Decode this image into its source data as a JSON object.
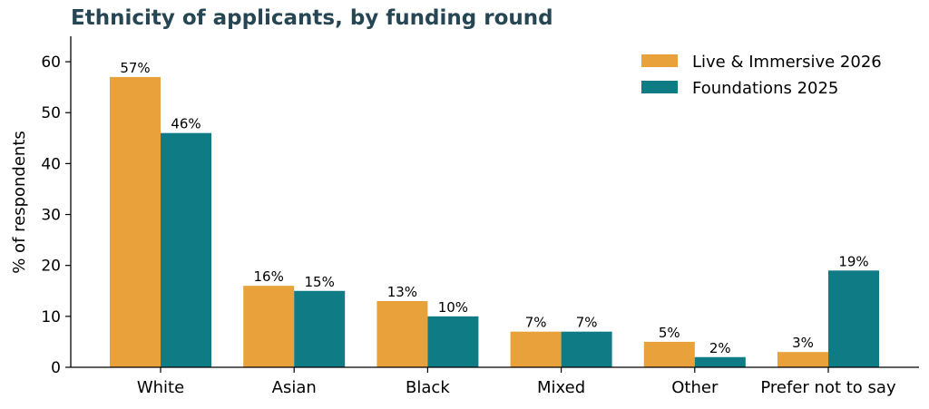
{
  "chart_data": {
    "type": "bar",
    "title": "Ethnicity of applicants, by funding round",
    "xlabel": "",
    "ylabel": "% of respondents",
    "ylim": [
      0,
      65
    ],
    "yticks": [
      0,
      10,
      20,
      30,
      40,
      50,
      60
    ],
    "grid": false,
    "legend_position": "top-right",
    "categories": [
      "White",
      "Asian",
      "Black",
      "Mixed",
      "Other",
      "Prefer not to say"
    ],
    "series": [
      {
        "name": "Live & Immersive 2026",
        "color": "#E9A23B",
        "values": [
          57,
          16,
          13,
          7,
          5,
          3
        ],
        "labels": [
          "57%",
          "16%",
          "13%",
          "7%",
          "5%",
          "3%"
        ]
      },
      {
        "name": "Foundations 2025",
        "color": "#0F7B85",
        "values": [
          46,
          15,
          10,
          7,
          2,
          19
        ],
        "labels": [
          "46%",
          "15%",
          "10%",
          "7%",
          "2%",
          "19%"
        ]
      }
    ]
  }
}
